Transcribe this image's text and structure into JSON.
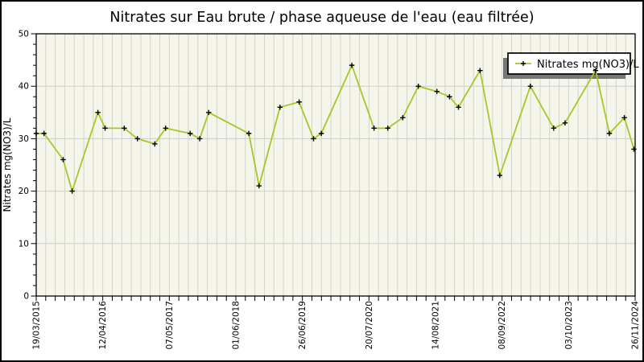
{
  "title": "Nitrates sur Eau brute / phase aqueuse de l'eau (eau filtrée)",
  "legend": {
    "label": "Nitrates mg(NO3)/L",
    "position": "top-right"
  },
  "colors": {
    "line": "#a4c828",
    "marker": "#000000",
    "plot_bg": "#f5f5ec",
    "grid_vertical": "#d4d4c6",
    "grid_horizontal": "#cdcdcd",
    "axis": "#000000",
    "text": "#000000",
    "legend_bg": "#ffffff",
    "legend_border": "#000000",
    "legend_shadow": "#777777",
    "page_bg": "#ffffff",
    "outer_border": "#000000"
  },
  "chart_data": {
    "type": "line",
    "title": "Nitrates sur Eau brute / phase aqueuse de l'eau (eau filtrée)",
    "xlabel": "",
    "ylabel": "Nitrates mg(NO3)/L",
    "series_name": "Nitrates mg(NO3)/L",
    "ylim": [
      0,
      50
    ],
    "y_major_ticks": [
      0,
      10,
      20,
      30,
      40,
      50
    ],
    "y_minor_step": 2,
    "grid": true,
    "x_tick_labels": [
      "19/03/2015",
      "12/04/2016",
      "07/05/2017",
      "01/06/2018",
      "26/06/2019",
      "20/07/2020",
      "14/08/2021",
      "08/09/2022",
      "03/10/2023",
      "26/11/2024"
    ],
    "x_minor_intervals": 63,
    "x_labels_every_n_minor": 7,
    "legend_position": "top-right",
    "points_format": "[x_fraction_along_axis_from_19/03/2015_to_26/11/2024, value_mg_NO3_per_L]",
    "points": [
      [
        0.0,
        31
      ],
      [
        0.013,
        31
      ],
      [
        0.045,
        26
      ],
      [
        0.06,
        20
      ],
      [
        0.103,
        35
      ],
      [
        0.115,
        32
      ],
      [
        0.147,
        32
      ],
      [
        0.169,
        30
      ],
      [
        0.198,
        29
      ],
      [
        0.216,
        32
      ],
      [
        0.257,
        31
      ],
      [
        0.273,
        30
      ],
      [
        0.288,
        35
      ],
      [
        0.355,
        31
      ],
      [
        0.372,
        21
      ],
      [
        0.407,
        36
      ],
      [
        0.439,
        37
      ],
      [
        0.463,
        30
      ],
      [
        0.476,
        31
      ],
      [
        0.527,
        44
      ],
      [
        0.564,
        32
      ],
      [
        0.587,
        32
      ],
      [
        0.612,
        34
      ],
      [
        0.638,
        40
      ],
      [
        0.669,
        39
      ],
      [
        0.69,
        38
      ],
      [
        0.705,
        36
      ],
      [
        0.741,
        43
      ],
      [
        0.774,
        23
      ],
      [
        0.825,
        40
      ],
      [
        0.864,
        32
      ],
      [
        0.883,
        33
      ],
      [
        0.934,
        43
      ],
      [
        0.957,
        31
      ],
      [
        0.982,
        34
      ],
      [
        0.998,
        28
      ]
    ]
  }
}
